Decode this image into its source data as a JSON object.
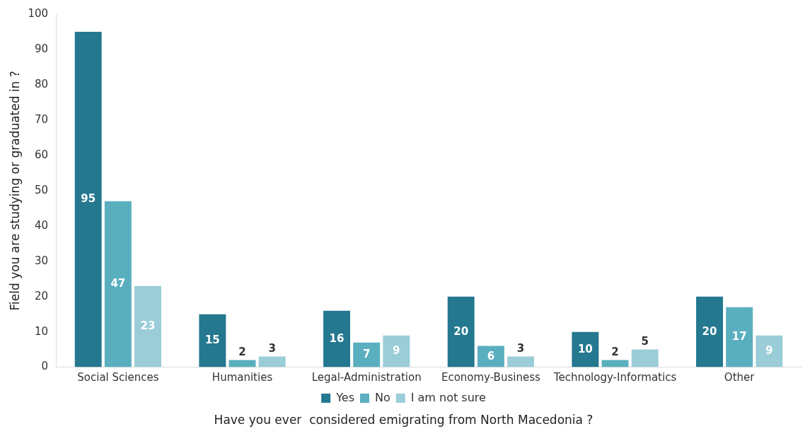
{
  "chart_data": {
    "type": "bar",
    "xlabel": "Have you ever  considered emigrating from North Macedonia ?",
    "ylabel": "Field you are studying or graduated in ?",
    "categories": [
      "Social Sciences",
      "Humanities",
      "Legal-Administration",
      "Economy-Business",
      "Technology-Informatics",
      "Other"
    ],
    "series": [
      {
        "name": "Yes",
        "color": "#24788f",
        "values": [
          95,
          15,
          16,
          20,
          10,
          20
        ]
      },
      {
        "name": "No",
        "color": "#5aafbf",
        "values": [
          47,
          2,
          7,
          6,
          2,
          17
        ]
      },
      {
        "name": "I am not sure",
        "color": "#9acdd8",
        "values": [
          23,
          3,
          9,
          3,
          5,
          9
        ]
      }
    ],
    "ylim": [
      0,
      100
    ],
    "yticks": [
      0,
      10,
      20,
      30,
      40,
      50,
      60,
      70,
      80,
      90,
      100
    ],
    "grid": false,
    "legend": "bottom",
    "data_labels": true
  }
}
